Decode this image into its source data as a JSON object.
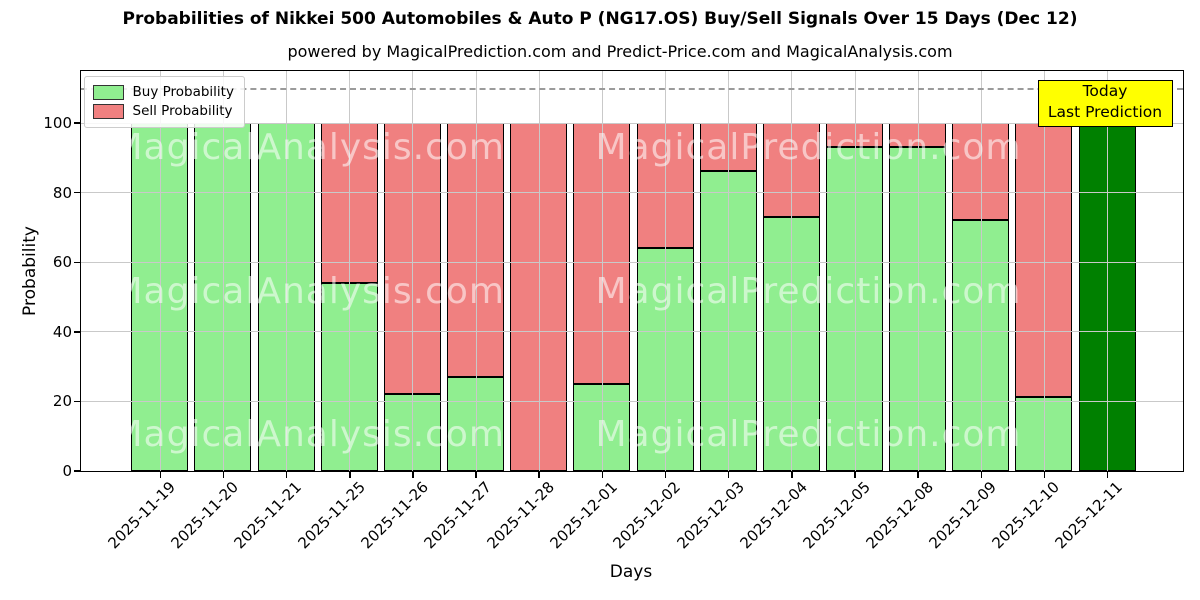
{
  "title": "Probabilities of Nikkei 500 Automobiles & Auto P (NG17.OS) Buy/Sell Signals Over 15 Days (Dec 12)",
  "subtitle": "powered by MagicalPrediction.com and Predict-Price.com and MagicalAnalysis.com",
  "legend": {
    "items": [
      {
        "label": "Buy Probability",
        "color": "#90ee90"
      },
      {
        "label": "Sell Probability",
        "color": "#f08080"
      }
    ]
  },
  "annotation_box": {
    "line1": "Today",
    "line2": "Last Prediction",
    "bg_color": "#ffff00"
  },
  "watermarks": {
    "left": "MagicalAnalysis.com",
    "right": "MagicalPrediction.com"
  },
  "chart_data": {
    "type": "bar",
    "stacked": true,
    "title": "Probabilities of Nikkei 500 Automobiles & Auto P (NG17.OS) Buy/Sell Signals Over 15 Days (Dec 12)",
    "xlabel": "Days",
    "ylabel": "Probability",
    "categories": [
      "2025-11-19",
      "2025-11-20",
      "2025-11-21",
      "2025-11-25",
      "2025-11-26",
      "2025-11-27",
      "2025-11-28",
      "2025-12-01",
      "2025-12-02",
      "2025-12-03",
      "2025-12-04",
      "2025-12-05",
      "2025-12-08",
      "2025-12-09",
      "2025-12-10",
      "2025-12-11"
    ],
    "series": [
      {
        "name": "Buy Probability",
        "color": "#90ee90",
        "values": [
          100,
          100,
          100,
          54,
          22,
          27,
          0,
          25,
          64,
          86,
          73,
          93,
          93,
          72,
          21,
          100
        ]
      },
      {
        "name": "Sell Probability",
        "color": "#f08080",
        "values": [
          0,
          0,
          0,
          46,
          78,
          73,
          100,
          75,
          36,
          14,
          27,
          7,
          7,
          28,
          79,
          0
        ]
      }
    ],
    "today_bar": {
      "category": "2025-12-11",
      "index": 15,
      "color": "#008000",
      "value": 100,
      "note": "Today / Last Prediction"
    },
    "bar_edge_color": "#000000",
    "yticks": [
      0,
      20,
      40,
      60,
      80,
      100
    ],
    "ylim": [
      0,
      115
    ],
    "dashed_guideline_y": 110,
    "grid": true,
    "legend_position": "upper left"
  }
}
